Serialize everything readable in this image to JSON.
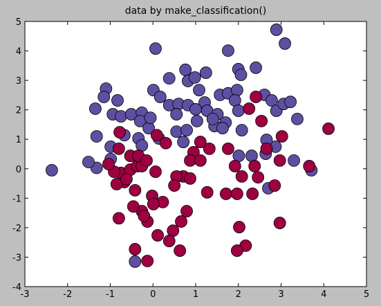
{
  "chart_data": {
    "type": "scatter",
    "title": "data by make_classification()",
    "xlim": [
      -3,
      5
    ],
    "ylim": [
      -4,
      5
    ],
    "xticks": [
      -3,
      -2,
      -1,
      0,
      1,
      2,
      3,
      4,
      5
    ],
    "yticks": [
      -4,
      -3,
      -2,
      -1,
      0,
      1,
      2,
      3,
      4,
      5
    ],
    "series": [
      {
        "color": "#5e4fa2",
        "x": [
          -2.37,
          0.06,
          2.89,
          3.09,
          1.76,
          2.41,
          2.0,
          0.76,
          1.24,
          0.38,
          0.82,
          0.98,
          -1.1,
          -1.15,
          -0.83,
          -1.35,
          -0.94,
          -0.75,
          -0.51,
          -0.26,
          -0.3,
          0.01,
          0.17,
          0.38,
          0.6,
          0.82,
          0.55,
          1.08,
          1.21,
          1.0,
          1.27,
          1.57,
          1.76,
          1.97,
          2.06,
          1.92,
          1.51,
          1.7,
          1.44,
          1.63,
          2.08,
          2.0,
          2.61,
          2.78,
          2.89,
          3.06,
          3.22,
          3.38,
          2.87,
          2.66,
          2.64,
          2.31,
          2.01,
          3.3,
          3.71,
          2.7,
          -1.32,
          -1.51,
          -1.32,
          -0.99,
          -0.67,
          -0.34,
          -0.26,
          -0.1,
          -0.06,
          -0.99,
          -0.42,
          0.55,
          0.79,
          0.71,
          1.03,
          1.4,
          0.14
        ],
        "y": [
          -0.05,
          4.08,
          4.72,
          4.25,
          4.01,
          3.43,
          3.38,
          3.36,
          3.26,
          3.07,
          2.98,
          3.1,
          2.72,
          2.44,
          2.32,
          2.04,
          1.85,
          1.78,
          1.85,
          1.9,
          1.62,
          2.67,
          2.44,
          2.16,
          2.2,
          2.16,
          1.85,
          2.67,
          2.25,
          2.02,
          1.97,
          2.51,
          2.56,
          2.67,
          3.19,
          2.32,
          1.85,
          1.57,
          1.45,
          1.38,
          1.31,
          1.97,
          2.51,
          2.32,
          1.97,
          2.2,
          2.27,
          1.69,
          0.75,
          0.98,
          0.51,
          0.44,
          0.44,
          0.28,
          -0.05,
          -0.66,
          0.03,
          0.23,
          1.1,
          0.75,
          1.14,
          1.03,
          0.79,
          1.38,
          1.73,
          0.33,
          -3.15,
          1.26,
          1.31,
          0.91,
          1.62,
          1.69,
          1.03
        ]
      },
      {
        "color": "#9e0142",
        "x": [
          4.11,
          2.41,
          2.25,
          2.54,
          3.02,
          2.97,
          2.66,
          2.38,
          2.46,
          2.33,
          2.85,
          3.66,
          2.97,
          1.92,
          1.76,
          2.08,
          1.71,
          1.97,
          2.02,
          2.17,
          1.97,
          1.27,
          1.32,
          1.11,
          0.95,
          0.87,
          1.11,
          0.71,
          0.87,
          0.55,
          0.5,
          0.3,
          0.09,
          0.79,
          0.66,
          0.47,
          0.63,
          0.38,
          0.11,
          0.23,
          -0.02,
          0.01,
          -0.13,
          -0.26,
          -0.46,
          -0.21,
          -0.42,
          -0.13,
          0.06,
          -0.42,
          -0.67,
          -0.75,
          -0.91,
          -0.53,
          -0.37,
          -0.8,
          -0.8,
          -0.78,
          -0.26,
          -0.53,
          -0.34,
          -1.04,
          -0.85,
          -0.62,
          -0.15
        ],
        "y": [
          1.36,
          2.44,
          2.04,
          1.62,
          1.1,
          0.28,
          0.68,
          0.09,
          -0.29,
          -0.85,
          -0.57,
          0.09,
          -1.84,
          0.09,
          0.68,
          -0.26,
          -0.85,
          -0.85,
          -1.98,
          -2.61,
          -2.78,
          -0.8,
          0.68,
          0.91,
          0.56,
          0.28,
          0.28,
          -0.26,
          -0.33,
          -0.26,
          -0.57,
          0.87,
          1.14,
          -1.44,
          -1.79,
          -2.1,
          -2.78,
          -2.45,
          -2.26,
          -1.13,
          -0.92,
          -1.2,
          -1.79,
          -1.44,
          -1.28,
          -1.6,
          -2.73,
          -3.13,
          -0.1,
          -0.73,
          -0.45,
          -0.14,
          -0.1,
          -0.03,
          0.09,
          -1.68,
          0.68,
          1.24,
          0.09,
          0.44,
          0.44,
          0.16,
          -0.52,
          -0.35,
          0.28
        ]
      }
    ]
  }
}
